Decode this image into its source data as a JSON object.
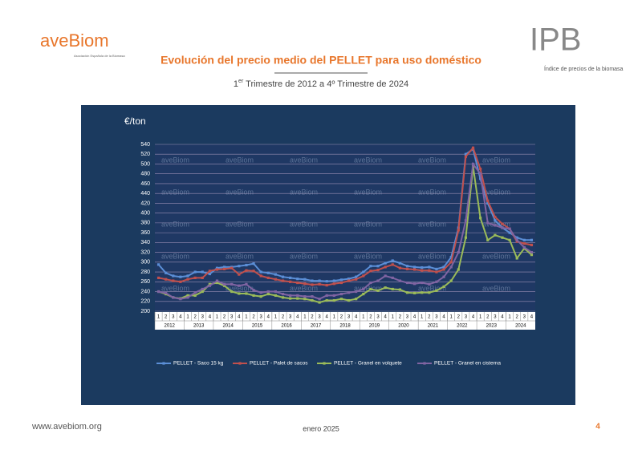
{
  "header": {
    "logo_left": "aveBiom",
    "logo_left_sub": "Asociación Española de la Biomasa",
    "logo_right": "IPB",
    "logo_right_sub": "Índice de precios de la biomasa",
    "title": "Evolución del precio medio del PELLET para uso doméstico",
    "subtitle_num": "1",
    "subtitle_sup": "er",
    "subtitle_rest": " Trimestre de 2012 a 4º Trimestre de 2024"
  },
  "footer": {
    "url": "www.avebiom.org",
    "date": "enero 2025",
    "page": "4"
  },
  "chart_data": {
    "type": "line",
    "y_label": "€/ton",
    "watermark": "aveBiom",
    "categories": [
      "1",
      "2",
      "3",
      "4",
      "1",
      "2",
      "3",
      "4",
      "1",
      "2",
      "3",
      "4",
      "1",
      "2",
      "3",
      "4",
      "1",
      "2",
      "3",
      "4",
      "1",
      "2",
      "3",
      "4",
      "1",
      "2",
      "3",
      "4",
      "1",
      "2",
      "3",
      "4",
      "1",
      "2",
      "3",
      "4",
      "1",
      "2",
      "3",
      "4",
      "1",
      "2",
      "3",
      "4",
      "1",
      "2",
      "3",
      "4",
      "1",
      "2",
      "3",
      "4"
    ],
    "years": [
      "2012",
      "2013",
      "2014",
      "2015",
      "2016",
      "2017",
      "2018",
      "2019",
      "2020",
      "2021",
      "2022",
      "2023",
      "2024"
    ],
    "ylim": [
      200,
      540
    ],
    "yticks": [
      200,
      220,
      240,
      260,
      280,
      300,
      320,
      340,
      360,
      380,
      400,
      420,
      440,
      460,
      480,
      500,
      520,
      540
    ],
    "grid": true,
    "series": [
      {
        "name": "PELLET - Saco 15 kg",
        "color": "#5b8ed6",
        "values": [
          295,
          278,
          272,
          270,
          272,
          280,
          280,
          276,
          288,
          290,
          290,
          292,
          294,
          297,
          280,
          278,
          275,
          270,
          268,
          266,
          265,
          262,
          262,
          261,
          262,
          264,
          266,
          270,
          280,
          292,
          292,
          298,
          303,
          298,
          292,
          290,
          289,
          290,
          286,
          290,
          310,
          370,
          520,
          530,
          470,
          420,
          385,
          370,
          360,
          350,
          345,
          345
        ]
      },
      {
        "name": "PELLET -  Palet de sacos",
        "color": "#c0504d",
        "values": [
          268,
          265,
          262,
          260,
          265,
          268,
          268,
          282,
          285,
          286,
          288,
          275,
          283,
          282,
          272,
          268,
          265,
          262,
          260,
          258,
          256,
          254,
          255,
          253,
          256,
          258,
          262,
          265,
          272,
          282,
          284,
          290,
          295,
          288,
          286,
          285,
          283,
          283,
          280,
          285,
          300,
          365,
          515,
          533,
          490,
          425,
          392,
          378,
          368,
          342,
          338,
          335
        ]
      },
      {
        "name": "PELLET - Granel en volquete",
        "color": "#9bbb59",
        "values": [
          240,
          235,
          228,
          226,
          232,
          232,
          240,
          255,
          258,
          252,
          240,
          236,
          236,
          232,
          230,
          235,
          232,
          228,
          226,
          226,
          225,
          222,
          218,
          222,
          222,
          225,
          222,
          225,
          235,
          245,
          242,
          248,
          245,
          244,
          238,
          237,
          238,
          238,
          242,
          250,
          262,
          285,
          350,
          495,
          390,
          345,
          355,
          350,
          345,
          308,
          328,
          315
        ]
      },
      {
        "name": "PELLET - Granel en cisterna",
        "color": "#8064a2",
        "values": [
          240,
          237,
          228,
          225,
          228,
          238,
          245,
          252,
          262,
          255,
          255,
          252,
          255,
          243,
          238,
          240,
          240,
          235,
          232,
          232,
          230,
          230,
          225,
          232,
          232,
          235,
          238,
          240,
          245,
          258,
          262,
          272,
          268,
          262,
          258,
          256,
          258,
          255,
          260,
          270,
          290,
          320,
          385,
          500,
          480,
          380,
          375,
          370,
          368,
          345,
          330,
          320
        ]
      }
    ]
  }
}
